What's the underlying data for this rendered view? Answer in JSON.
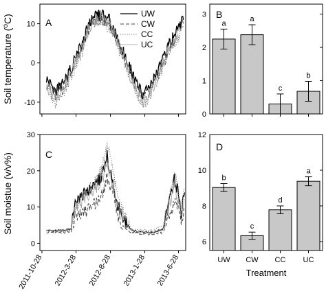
{
  "figure": {
    "colors": {
      "axis": "#000000",
      "bar_fill": "#c8c8c8",
      "UW": "#000000",
      "CW": "#444444",
      "CC": "#777777",
      "UC": "#9a9a9a"
    }
  },
  "chart_data": [
    {
      "id": "A",
      "panel_label": "A",
      "type": "line",
      "ylabel": "Soil temperature (°C)",
      "ylim": [
        -13,
        15
      ],
      "yticks": [
        -10,
        0,
        10
      ],
      "x_tick_labels": [
        "2011-10-28",
        "2012-3-28",
        "2012-8-28",
        "2013-1-28",
        "2013-6-28"
      ],
      "x_tick_days": [
        0,
        152,
        305,
        458,
        608
      ],
      "xlim_days": [
        -9,
        640
      ],
      "legend": {
        "position": "top-right",
        "entries": [
          "UW",
          "CW",
          "CC",
          "UC"
        ]
      },
      "series": [
        {
          "name": "UW",
          "style": "solid",
          "points": [
            [
              20,
              -4
            ],
            [
              60,
              -7
            ],
            [
              100,
              -5
            ],
            [
              140,
              0
            ],
            [
              180,
              5
            ],
            [
              210,
              10
            ],
            [
              240,
              12
            ],
            [
              270,
              12
            ],
            [
              300,
              11
            ],
            [
              330,
              7
            ],
            [
              360,
              3
            ],
            [
              390,
              -1
            ],
            [
              420,
              -5
            ],
            [
              450,
              -8
            ],
            [
              480,
              -6
            ],
            [
              510,
              -3
            ],
            [
              540,
              1
            ],
            [
              570,
              5
            ],
            [
              600,
              8
            ],
            [
              630,
              11
            ]
          ]
        },
        {
          "name": "CW",
          "style": "dashed",
          "points": [
            [
              20,
              -5
            ],
            [
              60,
              -8
            ],
            [
              100,
              -6
            ],
            [
              140,
              -1
            ],
            [
              180,
              4
            ],
            [
              210,
              9
            ],
            [
              240,
              11
            ],
            [
              270,
              11
            ],
            [
              300,
              10
            ],
            [
              330,
              6
            ],
            [
              360,
              2
            ],
            [
              390,
              -2
            ],
            [
              420,
              -6
            ],
            [
              450,
              -9
            ],
            [
              480,
              -7
            ],
            [
              510,
              -4
            ],
            [
              540,
              0
            ],
            [
              570,
              4
            ],
            [
              600,
              7
            ],
            [
              630,
              10
            ]
          ]
        },
        {
          "name": "CC",
          "style": "dotted",
          "points": [
            [
              20,
              -6
            ],
            [
              60,
              -10
            ],
            [
              100,
              -7
            ],
            [
              140,
              -2
            ],
            [
              180,
              3
            ],
            [
              210,
              8
            ],
            [
              240,
              11
            ],
            [
              270,
              11
            ],
            [
              300,
              9
            ],
            [
              330,
              5
            ],
            [
              360,
              1
            ],
            [
              390,
              -3
            ],
            [
              420,
              -7
            ],
            [
              450,
              -11
            ],
            [
              480,
              -8
            ],
            [
              510,
              -5
            ],
            [
              540,
              -1
            ],
            [
              570,
              3
            ],
            [
              600,
              6
            ],
            [
              630,
              9
            ]
          ]
        },
        {
          "name": "UC",
          "style": "thin",
          "points": [
            [
              20,
              -6
            ],
            [
              60,
              -9
            ],
            [
              100,
              -7
            ],
            [
              140,
              -1
            ],
            [
              180,
              4
            ],
            [
              210,
              9
            ],
            [
              240,
              11
            ],
            [
              270,
              11
            ],
            [
              300,
              10
            ],
            [
              330,
              6
            ],
            [
              360,
              2
            ],
            [
              390,
              -3
            ],
            [
              420,
              -7
            ],
            [
              450,
              -10
            ],
            [
              480,
              -8
            ],
            [
              510,
              -4
            ],
            [
              540,
              0
            ],
            [
              570,
              4
            ],
            [
              600,
              7
            ],
            [
              630,
              10
            ]
          ]
        }
      ]
    },
    {
      "id": "B",
      "panel_label": "B",
      "type": "bar",
      "categories": [
        "UW",
        "CW",
        "CC",
        "UC"
      ],
      "values": [
        2.25,
        2.38,
        0.3,
        0.68
      ],
      "errors": [
        0.3,
        0.3,
        0.3,
        0.3
      ],
      "letters": [
        "a",
        "a",
        "c",
        "b"
      ],
      "ylim": [
        0,
        3.3
      ],
      "yticks": [
        0,
        1,
        2,
        3
      ]
    },
    {
      "id": "C",
      "panel_label": "C",
      "type": "line",
      "ylabel": "Soil moistue (v/v%)",
      "ylim": [
        -2,
        30
      ],
      "yticks": [
        0,
        10,
        20,
        30
      ],
      "x_tick_labels": [
        "2011-10-28",
        "2012-3-28",
        "2012-8-28",
        "2013-1-28",
        "2013-6-28"
      ],
      "x_tick_days": [
        0,
        152,
        305,
        458,
        608
      ],
      "xlim_days": [
        -9,
        640
      ],
      "series": [
        {
          "name": "UW",
          "style": "solid",
          "points": [
            [
              20,
              3.5
            ],
            [
              100,
              3.5
            ],
            [
              130,
              4
            ],
            [
              145,
              10
            ],
            [
              170,
              13
            ],
            [
              200,
              14
            ],
            [
              240,
              16
            ],
            [
              270,
              19
            ],
            [
              290,
              24
            ],
            [
              310,
              18
            ],
            [
              340,
              10
            ],
            [
              370,
              6
            ],
            [
              400,
              3.5
            ],
            [
              450,
              3
            ],
            [
              500,
              3
            ],
            [
              540,
              4
            ],
            [
              570,
              12
            ],
            [
              590,
              18
            ],
            [
              605,
              14
            ],
            [
              620,
              8
            ],
            [
              635,
              14
            ]
          ]
        },
        {
          "name": "CW",
          "style": "dashed",
          "points": [
            [
              20,
              3
            ],
            [
              100,
              3
            ],
            [
              130,
              3
            ],
            [
              145,
              6
            ],
            [
              170,
              8
            ],
            [
              200,
              9
            ],
            [
              240,
              11
            ],
            [
              270,
              14
            ],
            [
              290,
              18
            ],
            [
              310,
              15
            ],
            [
              340,
              7
            ],
            [
              370,
              4
            ],
            [
              400,
              3
            ],
            [
              450,
              2.5
            ],
            [
              500,
              2.5
            ],
            [
              540,
              3
            ],
            [
              570,
              8
            ],
            [
              590,
              12
            ],
            [
              605,
              10
            ],
            [
              620,
              5
            ],
            [
              635,
              9
            ]
          ]
        },
        {
          "name": "CC",
          "style": "dotted",
          "points": [
            [
              20,
              3.5
            ],
            [
              100,
              3.5
            ],
            [
              130,
              4
            ],
            [
              145,
              9
            ],
            [
              170,
              12
            ],
            [
              200,
              14
            ],
            [
              240,
              17
            ],
            [
              270,
              21
            ],
            [
              290,
              27
            ],
            [
              310,
              22
            ],
            [
              340,
              12
            ],
            [
              370,
              7
            ],
            [
              400,
              4
            ],
            [
              450,
              3.5
            ],
            [
              500,
              3.5
            ],
            [
              540,
              5
            ],
            [
              570,
              13
            ],
            [
              590,
              20
            ],
            [
              605,
              15
            ],
            [
              620,
              9
            ],
            [
              635,
              15
            ]
          ]
        },
        {
          "name": "UC",
          "style": "thin",
          "points": [
            [
              20,
              3.5
            ],
            [
              100,
              3.5
            ],
            [
              130,
              4
            ],
            [
              145,
              9
            ],
            [
              170,
              11
            ],
            [
              200,
              13
            ],
            [
              240,
              15
            ],
            [
              270,
              18
            ],
            [
              290,
              22
            ],
            [
              310,
              17
            ],
            [
              340,
              9
            ],
            [
              370,
              5
            ],
            [
              400,
              3.5
            ],
            [
              450,
              3
            ],
            [
              500,
              3
            ],
            [
              540,
              4
            ],
            [
              570,
              11
            ],
            [
              590,
              16
            ],
            [
              605,
              12
            ],
            [
              620,
              7
            ],
            [
              635,
              12
            ]
          ]
        }
      ]
    },
    {
      "id": "D",
      "panel_label": "D",
      "type": "bar",
      "categories": [
        "UW",
        "CW",
        "CC",
        "UC"
      ],
      "values": [
        9.03,
        6.33,
        7.78,
        9.38
      ],
      "errors": [
        0.22,
        0.2,
        0.22,
        0.25
      ],
      "letters": [
        "b",
        "c",
        "d",
        "a"
      ],
      "ylim": [
        5.5,
        12
      ],
      "yticks": [
        6,
        8,
        10,
        12
      ],
      "xlabel": "Treatment"
    }
  ]
}
